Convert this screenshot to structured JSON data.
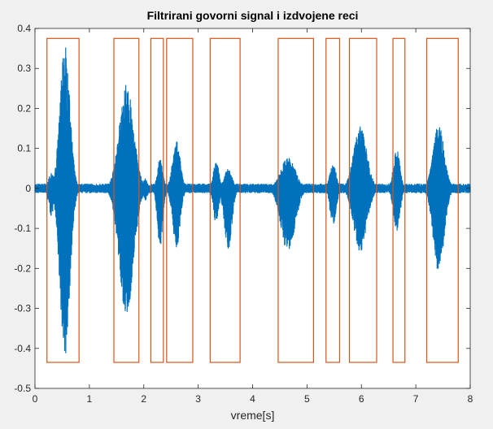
{
  "chart_data": {
    "type": "line",
    "title": "Filtrirani govorni signal i izdvojene reci",
    "xlabel": "vreme[s]",
    "ylabel": "",
    "xlim": [
      0,
      8
    ],
    "ylim": [
      -0.5,
      0.4
    ],
    "xticks": [
      "0",
      "1",
      "2",
      "3",
      "4",
      "5",
      "6",
      "7",
      "8"
    ],
    "yticks": [
      "0.4",
      "0.3",
      "0.2",
      "0.1",
      "0",
      "-0.1",
      "-0.2",
      "-0.3",
      "-0.4",
      "-0.5"
    ],
    "grid": false,
    "colors": {
      "signal": "#0072bd",
      "segments": "#d95319"
    },
    "series": [
      {
        "kind": "waveform",
        "noise_amplitude": 0.008,
        "bursts": [
          {
            "center": 0.55,
            "sigma": 0.09,
            "max": 0.36,
            "min": -0.43
          },
          {
            "center": 0.3,
            "sigma": 0.05,
            "max": 0.04,
            "min": -0.07
          },
          {
            "center": 1.68,
            "sigma": 0.13,
            "max": 0.26,
            "min": -0.32
          },
          {
            "center": 2.03,
            "sigma": 0.04,
            "max": 0.025,
            "min": -0.03
          },
          {
            "center": 2.3,
            "sigma": 0.05,
            "max": 0.075,
            "min": -0.15
          },
          {
            "center": 2.6,
            "sigma": 0.07,
            "max": 0.12,
            "min": -0.15
          },
          {
            "center": 3.33,
            "sigma": 0.05,
            "max": 0.07,
            "min": -0.09
          },
          {
            "center": 3.55,
            "sigma": 0.07,
            "max": 0.05,
            "min": -0.155
          },
          {
            "center": 4.65,
            "sigma": 0.13,
            "max": 0.08,
            "min": -0.16
          },
          {
            "center": 5.48,
            "sigma": 0.06,
            "max": 0.06,
            "min": -0.09
          },
          {
            "center": 5.98,
            "sigma": 0.12,
            "max": 0.155,
            "min": -0.16
          },
          {
            "center": 6.65,
            "sigma": 0.06,
            "max": 0.1,
            "min": -0.11
          },
          {
            "center": 7.42,
            "sigma": 0.1,
            "max": 0.16,
            "min": -0.21
          }
        ]
      },
      {
        "kind": "segments",
        "top": 0.375,
        "bottom": -0.435,
        "intervals": [
          [
            0.22,
            0.81
          ],
          [
            1.45,
            1.91
          ],
          [
            2.13,
            2.36
          ],
          [
            2.42,
            2.9
          ],
          [
            3.22,
            3.77
          ],
          [
            4.47,
            5.12
          ],
          [
            5.35,
            5.6
          ],
          [
            5.78,
            6.28
          ],
          [
            6.58,
            6.8
          ],
          [
            7.2,
            7.78
          ]
        ]
      }
    ]
  }
}
